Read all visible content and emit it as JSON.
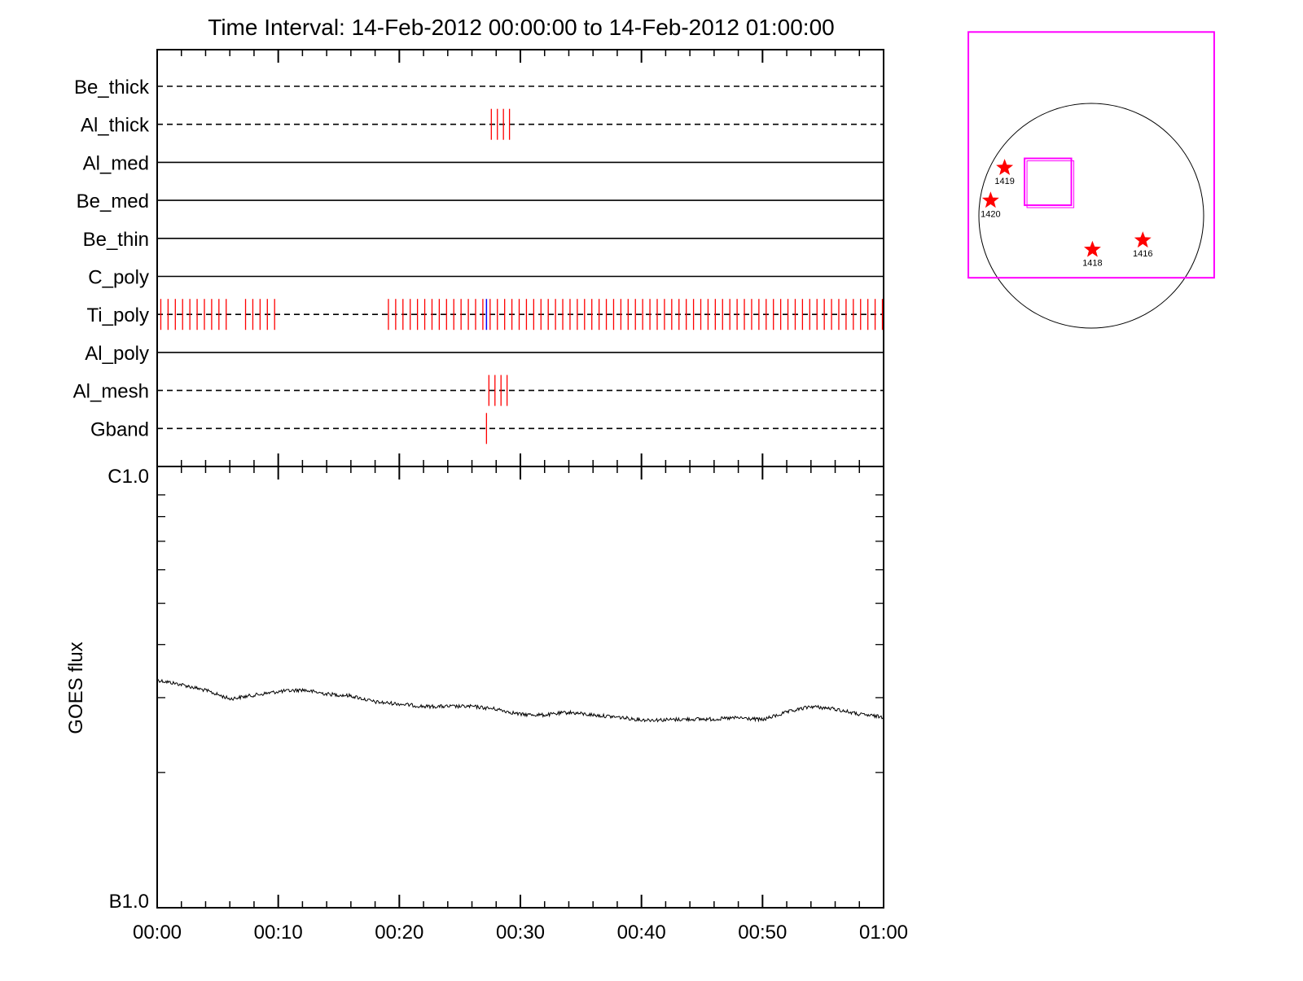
{
  "title": "Time Interval: 14-Feb-2012 00:00:00 to 14-Feb-2012 01:00:00",
  "colors": {
    "axis": "#000000",
    "event": "#ff0000",
    "event_alt": "#0000ff",
    "fov": "#ff00ff",
    "star": "#ff0000",
    "limb": "#000000"
  },
  "chart_data": [
    {
      "type": "timeline",
      "x_range_minutes": [
        0,
        60
      ],
      "x_tick_labels": [
        "00:00",
        "00:10",
        "00:20",
        "00:30",
        "00:40",
        "00:50",
        "01:00"
      ],
      "channels": [
        {
          "name": "Be_thick",
          "line": "dashed",
          "events": []
        },
        {
          "name": "Al_thick",
          "line": "dashed",
          "events": [
            27.6,
            28.1,
            28.6,
            29.1
          ]
        },
        {
          "name": "Al_med",
          "line": "solid",
          "events": []
        },
        {
          "name": "Be_med",
          "line": "solid",
          "events": []
        },
        {
          "name": "Be_thin",
          "line": "solid",
          "events": []
        },
        {
          "name": "C_poly",
          "line": "solid",
          "events": []
        },
        {
          "name": "Ti_poly",
          "line": "dashed",
          "event_blocks": [
            [
              0.3,
              6.0,
              0.6
            ],
            [
              7.3,
              9.9,
              0.6
            ],
            [
              19.1,
              60.0,
              0.6
            ]
          ],
          "alt_events": [
            27.2
          ]
        },
        {
          "name": "Al_poly",
          "line": "solid",
          "events": []
        },
        {
          "name": "Al_mesh",
          "line": "dashed",
          "events": [
            27.4,
            27.9,
            28.4,
            28.9
          ]
        },
        {
          "name": "Gband",
          "line": "dashed",
          "events": [
            27.2
          ]
        }
      ]
    },
    {
      "type": "line",
      "ylabel": "GOES flux",
      "y_tick_labels": [
        "C1.0",
        "B1.0"
      ],
      "y_scale": "log",
      "ylim_W_m2": [
        1e-07,
        1e-06
      ],
      "x_range_minutes": [
        0,
        60
      ],
      "x_tick_labels": [
        "00:00",
        "00:10",
        "00:20",
        "00:30",
        "00:40",
        "00:50",
        "01:00"
      ],
      "series": [
        {
          "x_minutes": [
            0,
            2,
            4,
            6,
            8,
            10,
            12,
            14,
            16,
            18,
            20,
            22,
            24,
            26,
            28,
            30,
            32,
            34,
            36,
            38,
            40,
            42,
            44,
            46,
            48,
            50,
            52,
            54,
            56,
            58,
            60
          ],
          "flux_W_m2": [
            3.3e-07,
            3.22e-07,
            3.12e-07,
            2.98e-07,
            3.04e-07,
            3.1e-07,
            3.13e-07,
            3.06e-07,
            3.03e-07,
            2.93e-07,
            2.9e-07,
            2.86e-07,
            2.86e-07,
            2.86e-07,
            2.82e-07,
            2.74e-07,
            2.73e-07,
            2.77e-07,
            2.73e-07,
            2.7e-07,
            2.66e-07,
            2.66e-07,
            2.67e-07,
            2.67e-07,
            2.69e-07,
            2.66e-07,
            2.77e-07,
            2.86e-07,
            2.82e-07,
            2.74e-07,
            2.7e-07
          ]
        }
      ]
    },
    {
      "type": "scatter",
      "description_of_axes": "solar disk map, arcsec",
      "limb_radius_arcsec": 960,
      "fov_boxes_arcsec": [
        {
          "center": [
            0,
            520
          ],
          "size": [
            2100,
            2100
          ]
        },
        {
          "center": [
            -370,
            290
          ],
          "size": [
            400,
            400
          ]
        }
      ],
      "active_regions": [
        {
          "label": "1419",
          "x": -740,
          "y": 410
        },
        {
          "label": "1420",
          "x": -860,
          "y": 130
        },
        {
          "label": "1418",
          "x": 10,
          "y": -290
        },
        {
          "label": "1416",
          "x": 440,
          "y": -210
        }
      ]
    }
  ]
}
